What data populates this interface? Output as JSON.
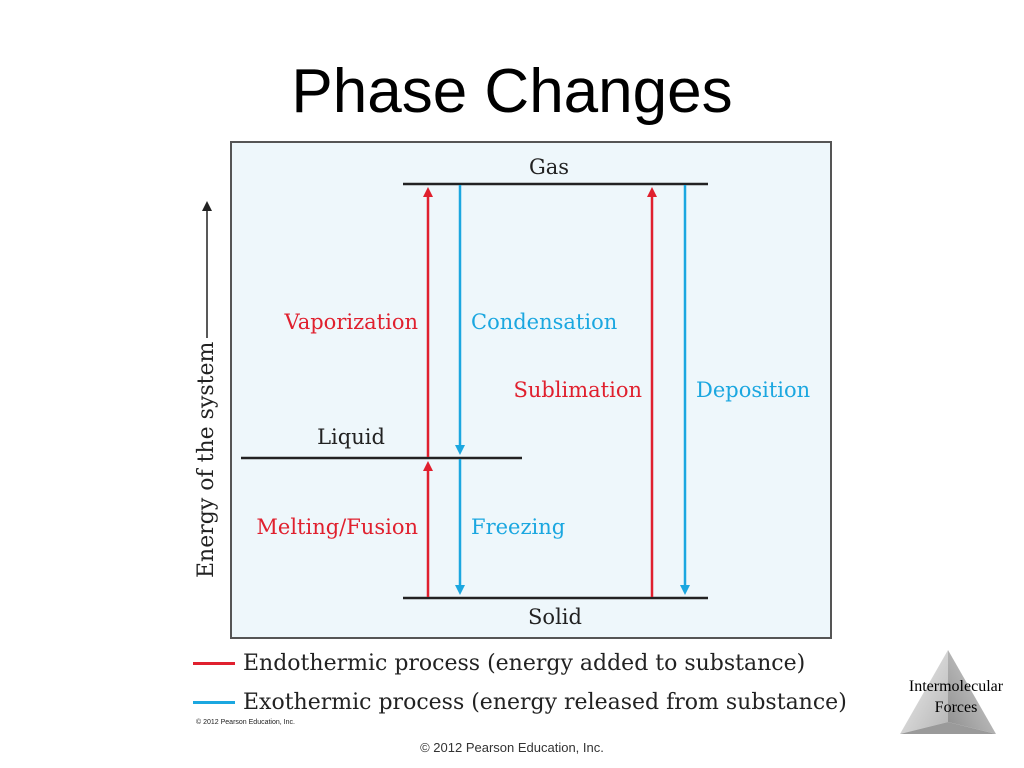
{
  "title": "Phase Changes",
  "diagram": {
    "axis_label": "Energy of the system",
    "levels": {
      "gas": "Gas",
      "liquid": "Liquid",
      "solid": "Solid"
    },
    "processes": {
      "vaporization": "Vaporization",
      "condensation": "Condensation",
      "sublimation": "Sublimation",
      "deposition": "Deposition",
      "melting": "Melting/Fusion",
      "freezing": "Freezing"
    },
    "colors": {
      "endothermic": "#e0202e",
      "exothermic": "#1ba7e0"
    }
  },
  "legend": {
    "endothermic": "Endothermic process (energy added to substance)",
    "exothermic": "Exothermic process (energy released from substance)"
  },
  "small_copyright": "© 2012 Pearson Education, Inc.",
  "footer": "© 2012 Pearson Education, Inc.",
  "logo": {
    "line1": "Intermolecular",
    "line2": "Forces"
  }
}
